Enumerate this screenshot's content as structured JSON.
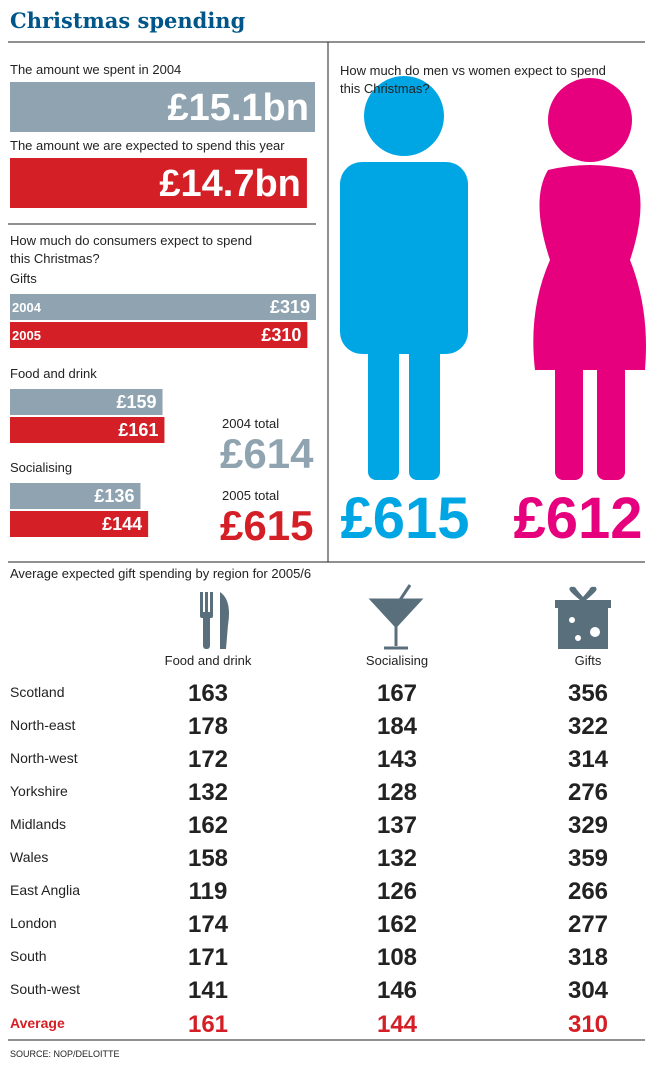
{
  "title": "Christmas spending",
  "totals": [
    {
      "label": "The amount we spent in 2004",
      "value": 15.1,
      "value_label": "£15.1bn",
      "color": "#8fa3b0"
    },
    {
      "label": "The amount we are expected to spend this year",
      "value": 14.7,
      "value_label": "£14.7bn",
      "color": "#d41f26"
    }
  ],
  "consumer": {
    "title_lines": [
      "How much do consumers expect to spend",
      "this Christmas?"
    ],
    "year_labels": [
      "2004",
      "2005"
    ],
    "colors": [
      "#8fa3b0",
      "#d41f26"
    ],
    "groups": [
      {
        "name": "Gifts",
        "values": [
          319,
          310
        ],
        "value_labels": [
          "£319",
          "£310"
        ]
      },
      {
        "name": "Food and drink",
        "values": [
          159,
          161
        ],
        "value_labels": [
          "£159",
          "£161"
        ]
      },
      {
        "name": "Socialising",
        "values": [
          136,
          144
        ],
        "value_labels": [
          "£136",
          "£144"
        ]
      }
    ],
    "group_totals": [
      {
        "label": "2004 total",
        "value_label": "£614"
      },
      {
        "label": "2005 total",
        "value_label": "£615"
      }
    ]
  },
  "gender": {
    "title_lines": [
      "How much do men vs women expect to spend",
      "this Christmas?"
    ],
    "men": {
      "value_label": "£615",
      "color": "#00a6e3"
    },
    "women": {
      "value_label": "£612",
      "color": "#e6007e"
    }
  },
  "region": {
    "title": "Average expected gift spending by region for 2005/6",
    "columns": [
      "Food and drink",
      "Socialising",
      "Gifts"
    ],
    "rows": [
      [
        "Scotland",
        163,
        167,
        356
      ],
      [
        "North-east",
        178,
        184,
        322
      ],
      [
        "North-west",
        172,
        143,
        314
      ],
      [
        "Yorkshire",
        132,
        128,
        276
      ],
      [
        "Midlands",
        162,
        137,
        329
      ],
      [
        "Wales",
        158,
        132,
        359
      ],
      [
        "East Anglia",
        119,
        126,
        266
      ],
      [
        "London",
        174,
        162,
        277
      ],
      [
        "South",
        171,
        108,
        318
      ],
      [
        "South-west",
        141,
        146,
        304
      ]
    ],
    "average": [
      "Average",
      161,
      144,
      310
    ]
  },
  "source": "SOURCE: NOP/DELOITTE"
}
